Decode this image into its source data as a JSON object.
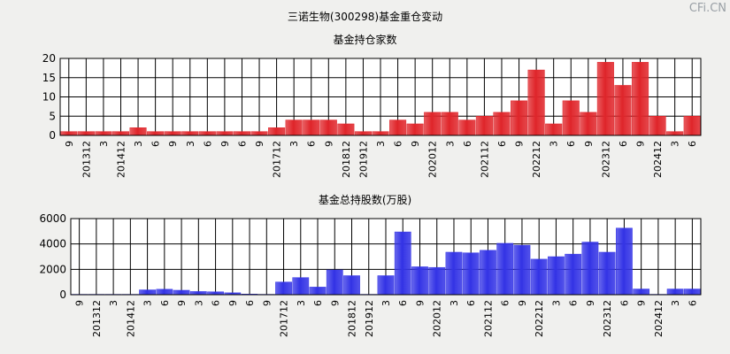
{
  "title": "三诺生物(300298)基金重仓变动",
  "watermark": "CFi.CN",
  "colors": {
    "chart1": "#e0262b",
    "chart2": "#3434e6",
    "grid": "#000000",
    "plot_bg": "#ffffff"
  },
  "chart_data": [
    {
      "type": "bar",
      "title": "基金持仓家数",
      "x_tick_labels": [
        "9",
        "201312",
        "3",
        "201412",
        "3",
        "6",
        "9",
        "3",
        "6",
        "9",
        "6",
        "9",
        "201712",
        "3",
        "6",
        "9",
        "201812",
        "201912",
        "3",
        "6",
        "9",
        "202012",
        "3",
        "6",
        "202112",
        "6",
        "9",
        "202212",
        "3",
        "6",
        "9",
        "202312",
        "6",
        "9",
        "202412",
        "3",
        "6"
      ],
      "categories": [
        "201309",
        "201312",
        "201403",
        "201412",
        "201503",
        "201506",
        "201509",
        "201603",
        "201606",
        "201609",
        "201706",
        "201709",
        "201712",
        "201803",
        "201806",
        "201809",
        "201812",
        "201912",
        "202003",
        "202006",
        "202009",
        "202012",
        "202103",
        "202106",
        "202112",
        "202206",
        "202209",
        "202212",
        "202303",
        "202306",
        "202309",
        "202312",
        "202406",
        "202409",
        "202412",
        "202503",
        "202506"
      ],
      "values": [
        1,
        1,
        1,
        1,
        2,
        1,
        1,
        1,
        1,
        1,
        1,
        1,
        2,
        4,
        4,
        4,
        3,
        1,
        1,
        4,
        3,
        6,
        6,
        4,
        5,
        6,
        9,
        17,
        3,
        9,
        6,
        19,
        13,
        19,
        5,
        1,
        5
      ],
      "ylim": [
        0,
        20
      ],
      "yticks": [
        0,
        5,
        10,
        15,
        20
      ]
    },
    {
      "type": "bar",
      "title": "基金总持股数(万股)",
      "x_tick_labels": [
        "9",
        "201312",
        "3",
        "201412",
        "3",
        "6",
        "9",
        "3",
        "6",
        "9",
        "6",
        "9",
        "201712",
        "3",
        "6",
        "9",
        "201812",
        "201912",
        "3",
        "6",
        "9",
        "202012",
        "3",
        "6",
        "202112",
        "6",
        "9",
        "202212",
        "3",
        "6",
        "9",
        "202312",
        "6",
        "9",
        "202412",
        "3",
        "6"
      ],
      "categories": [
        "201309",
        "201312",
        "201403",
        "201412",
        "201503",
        "201506",
        "201509",
        "201603",
        "201606",
        "201609",
        "201706",
        "201709",
        "201712",
        "201803",
        "201806",
        "201809",
        "201812",
        "201912",
        "202003",
        "202006",
        "202009",
        "202012",
        "202103",
        "202106",
        "202112",
        "202206",
        "202209",
        "202212",
        "202303",
        "202306",
        "202309",
        "202312",
        "202406",
        "202409",
        "202412",
        "202503",
        "202506"
      ],
      "values": [
        30,
        30,
        30,
        30,
        380,
        430,
        350,
        250,
        230,
        150,
        50,
        30,
        1000,
        1350,
        600,
        1950,
        1500,
        30,
        1500,
        4950,
        2200,
        2150,
        3350,
        3300,
        3500,
        4050,
        3900,
        2800,
        3000,
        3200,
        4150,
        3350,
        5250,
        450,
        30,
        450,
        450
      ],
      "ylim": [
        0,
        6000
      ],
      "yticks": [
        0,
        2000,
        4000,
        6000
      ]
    }
  ]
}
